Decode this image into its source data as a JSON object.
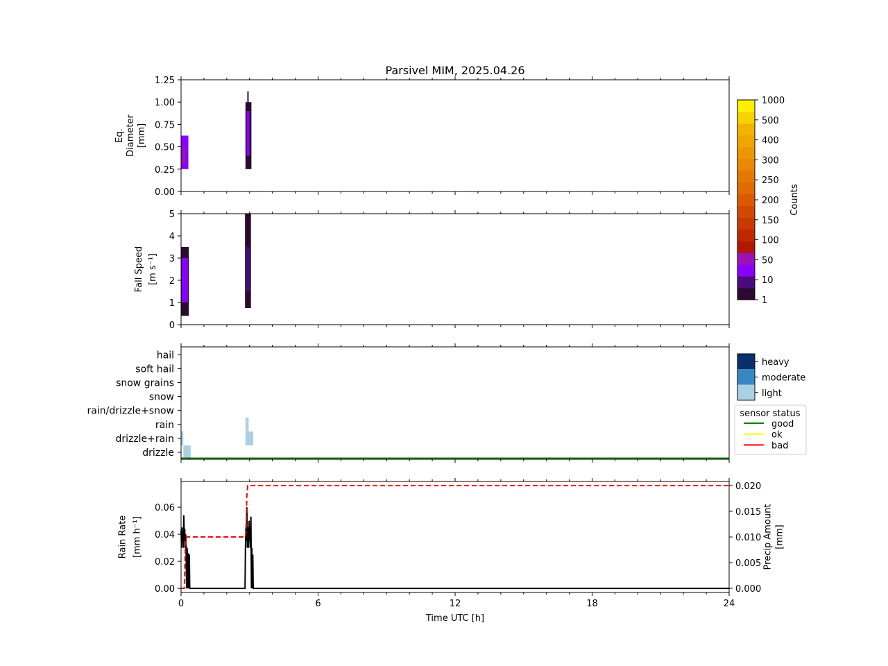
{
  "chart_data": {
    "title": "Parsivel MIM, 2025.04.26",
    "type": "heatmap",
    "x_axis": {
      "label": "Time UTC [h]",
      "range": [
        0,
        24
      ],
      "ticks": [
        0,
        6,
        12,
        18,
        24
      ]
    },
    "panels": [
      {
        "name": "diameter",
        "type": "heatmap",
        "ylabel_lines": [
          "Eq.",
          "Diameter",
          "[mm]"
        ],
        "ylim": [
          0,
          1.25
        ],
        "yticks": [
          "0.00",
          "0.25",
          "0.50",
          "0.75",
          "1.00",
          "1.25"
        ],
        "cells": [
          {
            "t0": 0.0,
            "t1": 0.32,
            "y0": 0.25,
            "y1": 0.625,
            "count": 10
          },
          {
            "t0": 0.06,
            "t1": 0.2,
            "y0": 0.31,
            "y1": 0.5,
            "count": 50
          },
          {
            "t0": 2.82,
            "t1": 3.08,
            "y0": 0.25,
            "y1": 1.0,
            "count": 3
          },
          {
            "t0": 2.87,
            "t1": 3.0,
            "y0": 0.4,
            "y1": 0.9,
            "count": 10
          },
          {
            "t0": 2.9,
            "t1": 2.96,
            "y0": 1.0,
            "y1": 1.12,
            "count": 2
          }
        ]
      },
      {
        "name": "fall-speed",
        "type": "heatmap",
        "ylabel_lines": [
          "Fall Speed",
          "[m s⁻¹]"
        ],
        "ylim": [
          0,
          5
        ],
        "yticks": [
          "0",
          "1",
          "2",
          "3",
          "4",
          "5"
        ],
        "cells": [
          {
            "t0": 0.0,
            "t1": 0.34,
            "y0": 0.4,
            "y1": 3.5,
            "count": 2
          },
          {
            "t0": 0.03,
            "t1": 0.3,
            "y0": 1.0,
            "y1": 3.0,
            "count": 10
          },
          {
            "t0": 2.8,
            "t1": 3.06,
            "y0": 0.75,
            "y1": 5.0,
            "count": 2
          },
          {
            "t0": 2.85,
            "t1": 3.0,
            "y0": 1.5,
            "y1": 3.5,
            "count": 5
          }
        ]
      },
      {
        "name": "precip-type",
        "type": "bar",
        "categories": [
          "drizzle",
          "drizzle+rain",
          "rain",
          "rain/drizzle+snow",
          "snow",
          "snow grains",
          "soft hail",
          "hail"
        ],
        "intensity_labels": [
          "light",
          "moderate",
          "heavy"
        ],
        "intensity_colors": [
          "#abd0e6",
          "#3787c0",
          "#08306b"
        ],
        "events": [
          {
            "t0": 0.0,
            "t1": 0.1,
            "category": "drizzle+rain",
            "intensity": "light"
          },
          {
            "t0": 0.1,
            "t1": 0.42,
            "category": "drizzle",
            "intensity": "light"
          },
          {
            "t0": 2.82,
            "t1": 2.96,
            "category": "rain",
            "intensity": "light"
          },
          {
            "t0": 2.82,
            "t1": 3.16,
            "category": "drizzle+rain",
            "intensity": "light"
          }
        ],
        "sensor_status": {
          "title": "sensor status",
          "entries": [
            {
              "label": "good",
              "color": "#008000"
            },
            {
              "label": "ok",
              "color": "#ffff00"
            },
            {
              "label": "bad",
              "color": "#ff0000"
            }
          ],
          "series": [
            {
              "t0": 0,
              "t1": 24,
              "status": "good"
            }
          ]
        }
      },
      {
        "name": "rain",
        "type": "line",
        "ylabel_lines": [
          "Rain Rate",
          "[mm h⁻¹]"
        ],
        "ylim": [
          -0.003,
          0.079
        ],
        "yticks": [
          "0.00",
          "0.02",
          "0.04",
          "0.06"
        ],
        "y2label_lines": [
          "Precip Amount",
          "[mm]"
        ],
        "y2lim": [
          -0.0008,
          0.0208
        ],
        "y2ticks": [
          "0.000",
          "0.005",
          "0.010",
          "0.015",
          "0.020"
        ],
        "series": [
          {
            "axis": "left",
            "color": "#000000",
            "style": "solid",
            "x": [
              0.0,
              0.02,
              0.04,
              0.06,
              0.08,
              0.1,
              0.12,
              0.14,
              0.16,
              0.18,
              0.2,
              0.22,
              0.24,
              0.26,
              0.28,
              0.3,
              0.32,
              0.34,
              0.36,
              0.38,
              0.4,
              0.42,
              0.5,
              2.8,
              2.82,
              2.84,
              2.86,
              2.88,
              2.9,
              2.92,
              2.94,
              2.96,
              2.98,
              3.0,
              3.02,
              3.04,
              3.06,
              3.08,
              3.1,
              3.12,
              3.14,
              3.16,
              3.2,
              24
            ],
            "y": [
              0.043,
              0.03,
              0.045,
              0.035,
              0.04,
              0.03,
              0.054,
              0.04,
              0.044,
              0.03,
              0.04,
              0.03,
              0.0,
              0.03,
              0.025,
              0.0,
              0.026,
              0.0,
              0.025,
              0.0,
              0.0,
              0.0,
              0.0,
              0.0,
              0.03,
              0.045,
              0.035,
              0.06,
              0.03,
              0.04,
              0.045,
              0.03,
              0.05,
              0.035,
              0.045,
              0.03,
              0.053,
              0.0,
              0.03,
              0.0,
              0.025,
              0.0,
              0.0,
              0.0
            ]
          },
          {
            "axis": "right",
            "color": "#ff0000",
            "style": "dashed",
            "x": [
              0,
              0.14,
              0.16,
              0.18,
              0.2,
              0.24,
              2.82,
              2.84,
              2.86,
              2.88,
              2.92,
              2.96,
              24
            ],
            "y": [
              0,
              0,
              0.003,
              0.007,
              0.009,
              0.01,
              0.01,
              0.011,
              0.014,
              0.018,
              0.02,
              0.02,
              0.02
            ]
          }
        ]
      }
    ],
    "colorbar": {
      "label": "Counts",
      "ticks": [
        "1",
        "10",
        "50",
        "100",
        "150",
        "200",
        "250",
        "300",
        "400",
        "500",
        "1000"
      ],
      "bands": [
        "#2a0a2e",
        "#4a0c7a",
        "#8800ff",
        "#9c12b5",
        "#b31700",
        "#c02800",
        "#c93a00",
        "#d24a00",
        "#da5a00",
        "#e06a00",
        "#e57800",
        "#ea8600",
        "#ed9600",
        "#f0a400",
        "#f2b400",
        "#f6d200",
        "#fdf000"
      ]
    }
  }
}
